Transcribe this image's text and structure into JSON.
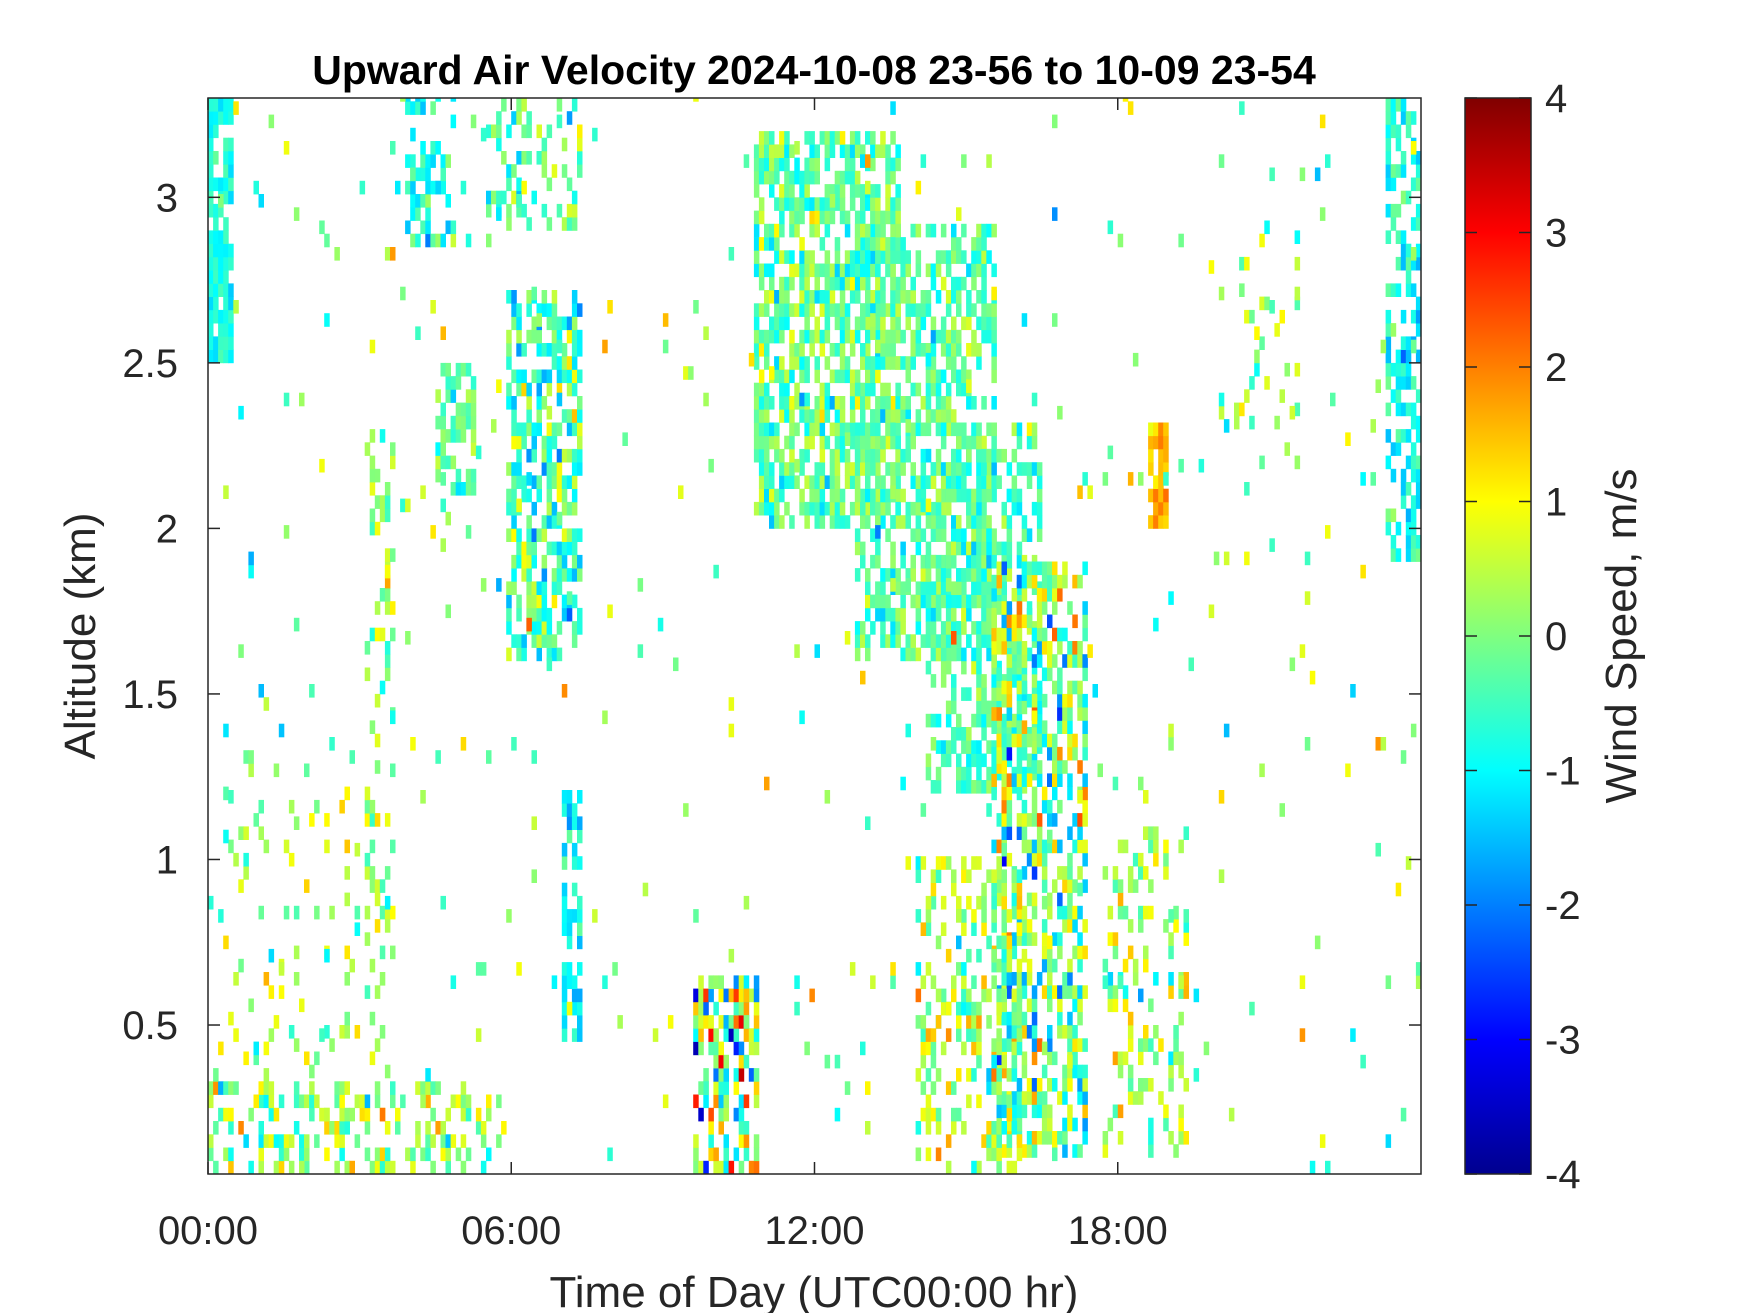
{
  "chart_data": {
    "type": "heatmap",
    "title": "Upward Air Velocity 2024-10-08 23-56 to 10-09 23-54",
    "xlabel": "Time of Day (UTC00:00 hr)",
    "ylabel": "Altitude (km)",
    "colorbar_label": "Wind Speed, m/s",
    "xlim": [
      0,
      24
    ],
    "ylim": [
      0.05,
      3.3
    ],
    "clim": [
      -4,
      4
    ],
    "x_ticks": [
      0,
      6,
      12,
      18
    ],
    "x_tick_labels": [
      "00:00",
      "06:00",
      "12:00",
      "18:00"
    ],
    "y_ticks": [
      0.5,
      1,
      1.5,
      2,
      2.5,
      3
    ],
    "y_tick_labels": [
      "0.5",
      "1",
      "1.5",
      "2",
      "2.5",
      "3"
    ],
    "colorbar_ticks": [
      -4,
      -3,
      -2,
      -1,
      0,
      1,
      2,
      3,
      4
    ],
    "colorbar_tick_labels": [
      "-4",
      "-3",
      "-2",
      "-1",
      "0",
      "1",
      "2",
      "3",
      "4"
    ],
    "colormap": "jet",
    "cell_width_hr": 0.1,
    "cell_height_km": 0.04,
    "regions": [
      {
        "name": "early-upper-column",
        "x": [
          0.0,
          0.45
        ],
        "y": [
          2.5,
          3.3
        ],
        "mean": -0.8,
        "spread": 0.4,
        "density": 0.75
      },
      {
        "name": "early-near-surface",
        "x": [
          0.0,
          5.5
        ],
        "y": [
          0.05,
          0.3
        ],
        "mean": 0.1,
        "spread": 1.0,
        "density": 0.35
      },
      {
        "name": "early-scattered-low",
        "x": [
          0.3,
          3.0
        ],
        "y": [
          0.3,
          1.2
        ],
        "mean": 0.3,
        "spread": 0.8,
        "density": 0.1
      },
      {
        "name": "column-03h",
        "x": [
          3.1,
          3.7
        ],
        "y": [
          0.3,
          2.3
        ],
        "mean": 0.2,
        "spread": 0.8,
        "density": 0.25
      },
      {
        "name": "column-04h-top",
        "x": [
          3.9,
          4.8
        ],
        "y": [
          2.85,
          3.3
        ],
        "mean": -0.8,
        "spread": 0.8,
        "density": 0.45
      },
      {
        "name": "column-04h-mid",
        "x": [
          4.5,
          5.2
        ],
        "y": [
          2.1,
          2.5
        ],
        "mean": -0.2,
        "spread": 0.7,
        "density": 0.55
      },
      {
        "name": "column-06h-top",
        "x": [
          5.5,
          7.3
        ],
        "y": [
          2.9,
          3.3
        ],
        "mean": -0.2,
        "spread": 0.9,
        "density": 0.3
      },
      {
        "name": "column-06h-core",
        "x": [
          5.9,
          7.3
        ],
        "y": [
          1.6,
          2.7
        ],
        "mean": -0.4,
        "spread": 1.0,
        "density": 0.6
      },
      {
        "name": "column-07h-trail",
        "x": [
          7.0,
          7.3
        ],
        "y": [
          0.45,
          1.2
        ],
        "mean": -1.0,
        "spread": 0.6,
        "density": 0.6
      },
      {
        "name": "burst-10h",
        "x": [
          9.6,
          10.8
        ],
        "y": [
          0.05,
          0.65
        ],
        "mean": 0.0,
        "spread": 2.0,
        "density": 0.6
      },
      {
        "name": "upper-cloud-11-13h",
        "x": [
          10.8,
          13.6
        ],
        "y": [
          2.0,
          3.2
        ],
        "mean": -0.2,
        "spread": 0.8,
        "density": 0.65
      },
      {
        "name": "upper-cloud-13-15h",
        "x": [
          12.8,
          15.5
        ],
        "y": [
          1.6,
          2.9
        ],
        "mean": -0.3,
        "spread": 0.7,
        "density": 0.55
      },
      {
        "name": "descending-band",
        "x": [
          14.2,
          16.5
        ],
        "y": [
          1.2,
          2.3
        ],
        "mean": -0.4,
        "spread": 0.7,
        "density": 0.5
      },
      {
        "name": "convective-column-16-17h",
        "x": [
          15.5,
          17.4
        ],
        "y": [
          0.1,
          1.9
        ],
        "mean": 0.0,
        "spread": 1.5,
        "density": 0.55
      },
      {
        "name": "low-mixed-14-16h",
        "x": [
          14.0,
          16.0
        ],
        "y": [
          0.05,
          1.0
        ],
        "mean": 0.3,
        "spread": 1.1,
        "density": 0.4
      },
      {
        "name": "late-cluster-18-19h",
        "x": [
          17.7,
          19.4
        ],
        "y": [
          0.1,
          1.1
        ],
        "mean": 0.3,
        "spread": 1.0,
        "density": 0.3
      },
      {
        "name": "late-feature-19h",
        "x": [
          18.6,
          19.0
        ],
        "y": [
          2.0,
          2.3
        ],
        "mean": 1.5,
        "spread": 0.5,
        "density": 0.7
      },
      {
        "name": "upper-scatter-21h",
        "x": [
          20.2,
          21.6
        ],
        "y": [
          2.1,
          2.9
        ],
        "mean": 0.0,
        "spread": 1.0,
        "density": 0.15
      },
      {
        "name": "end-column-23h",
        "x": [
          23.3,
          24.0
        ],
        "y": [
          1.9,
          3.3
        ],
        "mean": -0.9,
        "spread": 0.6,
        "density": 0.6
      },
      {
        "name": "scattered-noise",
        "x": [
          0.0,
          24.0
        ],
        "y": [
          0.05,
          3.3
        ],
        "mean": 0.0,
        "spread": 1.2,
        "density": 0.02
      }
    ]
  }
}
